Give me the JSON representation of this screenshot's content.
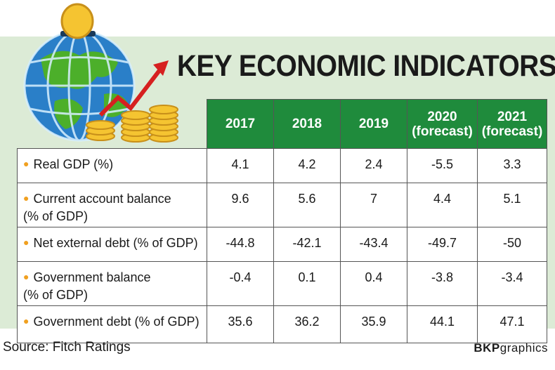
{
  "chart_data": {
    "type": "table",
    "title": "KEY ECONOMIC INDICATORS",
    "columns": [
      {
        "year": "2017",
        "note": ""
      },
      {
        "year": "2018",
        "note": ""
      },
      {
        "year": "2019",
        "note": ""
      },
      {
        "year": "2020",
        "note": "(forecast)"
      },
      {
        "year": "2021",
        "note": "(forecast)"
      }
    ],
    "rows": [
      {
        "label": [
          "Real GDP (%)"
        ],
        "values": [
          "4.1",
          "4.2",
          "2.4",
          "-5.5",
          "3.3"
        ],
        "red": [
          false,
          false,
          false,
          true,
          false
        ]
      },
      {
        "label": [
          "Current account balance",
          "(% of GDP)"
        ],
        "values": [
          "9.6",
          "5.6",
          "7",
          "4.4",
          "5.1"
        ],
        "red": [
          false,
          false,
          false,
          false,
          false
        ]
      },
      {
        "label": [
          "Net external debt (% of GDP)"
        ],
        "values": [
          "-44.8",
          "-42.1",
          "-43.4",
          "-49.7",
          "-50"
        ],
        "red": [
          true,
          true,
          true,
          true,
          true
        ]
      },
      {
        "label": [
          "Government balance",
          "(% of GDP)"
        ],
        "values": [
          "-0.4",
          "0.1",
          "0.4",
          "-3.8",
          "-3.4"
        ],
        "red": [
          true,
          true,
          true,
          true,
          true
        ]
      },
      {
        "label": [
          "Government debt (% of GDP)"
        ],
        "values": [
          "35.6",
          "36.2",
          "35.9",
          "44.1",
          "47.1"
        ],
        "red": [
          false,
          false,
          false,
          false,
          false
        ]
      }
    ]
  },
  "source": "Source: Fitch Ratings",
  "credit": {
    "bold": "BKP",
    "rest": "graphics"
  },
  "colors": {
    "header": "#1f8b3c",
    "negative": "#e02020",
    "bullet": "#f0a020",
    "panel": "#dcebd6"
  }
}
